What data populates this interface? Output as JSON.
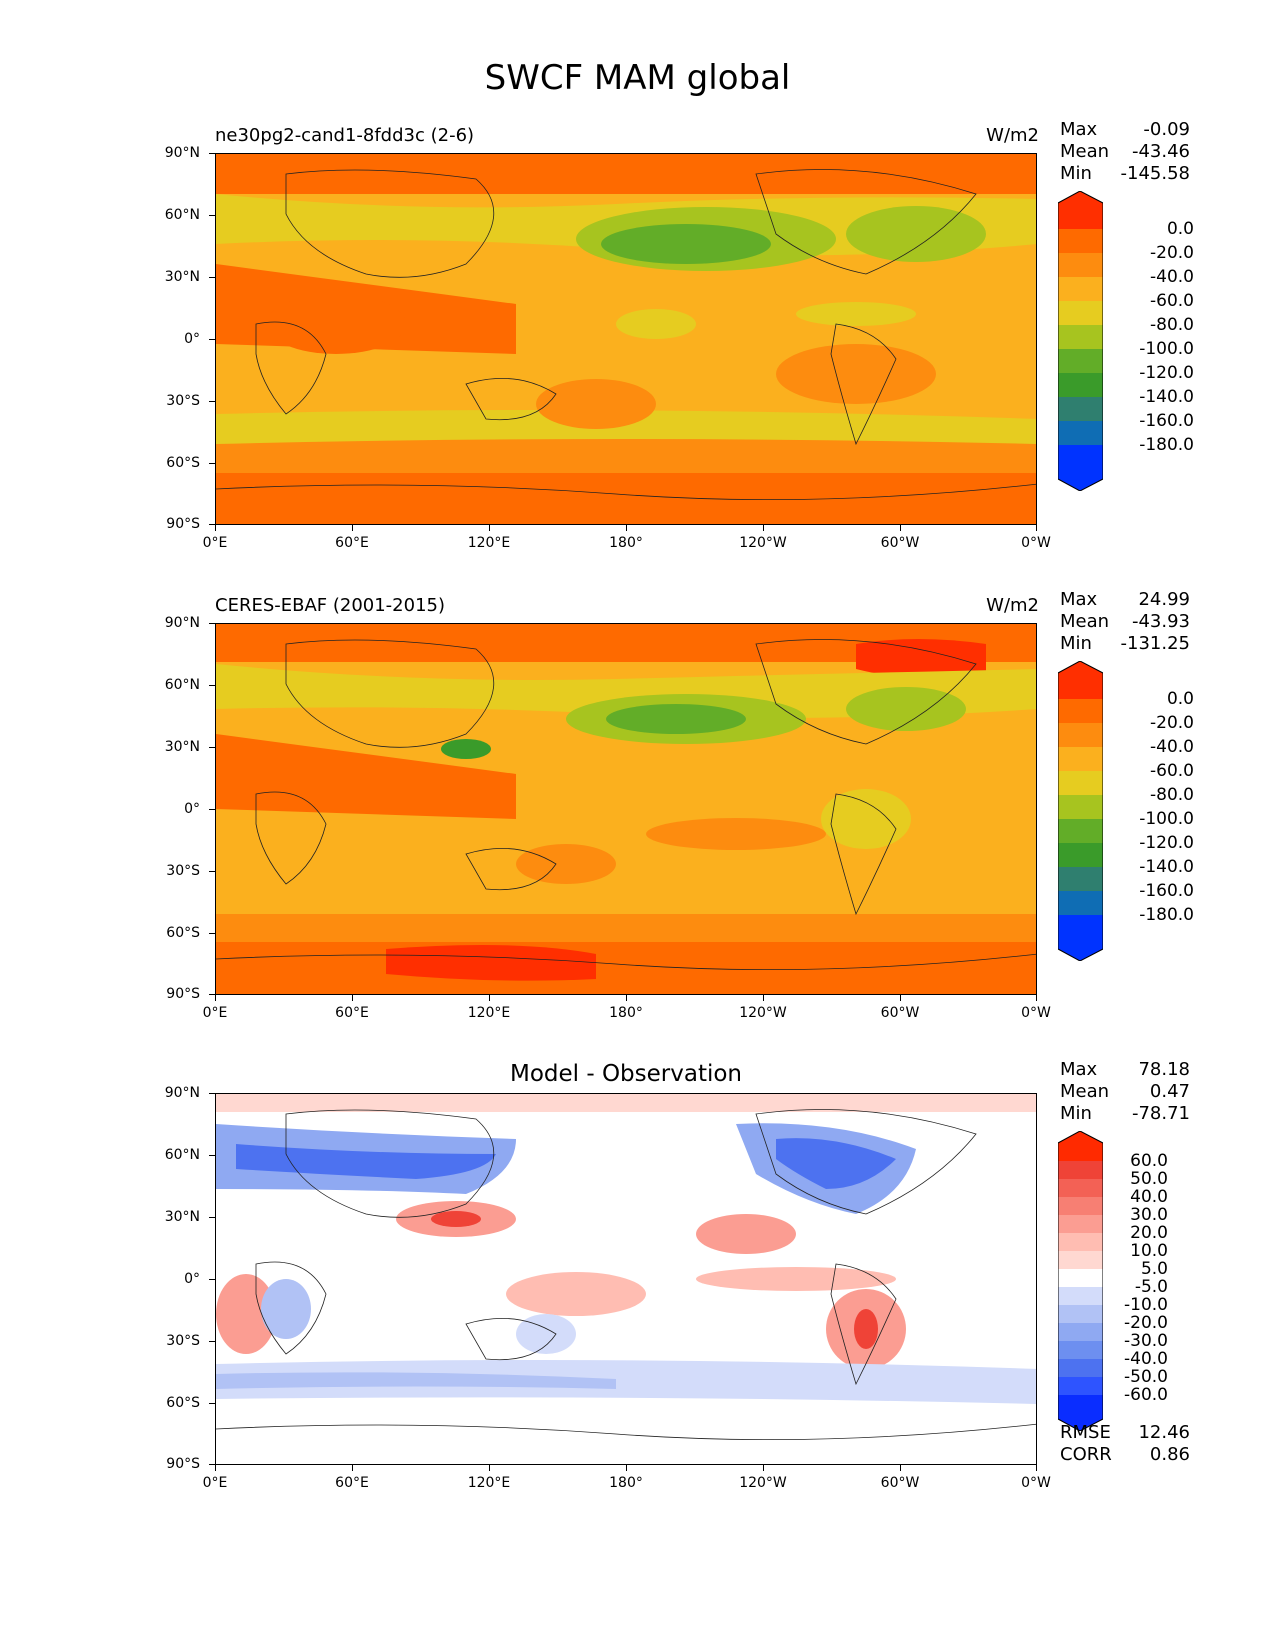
{
  "figure_title": "SWCF MAM global",
  "axes": {
    "lat_labels": [
      "90°N",
      "60°N",
      "30°N",
      "0°",
      "30°S",
      "60°S",
      "90°S"
    ],
    "lon_labels": [
      "0°E",
      "60°E",
      "120°E",
      "180°",
      "120°W",
      "60°W",
      "0°W"
    ]
  },
  "colors": {
    "abs_levels": [
      "#0033ff",
      "#0f6db4",
      "#2f7f6f",
      "#3a9b2a",
      "#62ad28",
      "#a7c41f",
      "#e6cc20",
      "#fbb01e",
      "#fd8c0f",
      "#fe6a00",
      "#ff2f00"
    ],
    "diff_levels": [
      "#0a2dff",
      "#2e54ff",
      "#4d72f0",
      "#6d8ff0",
      "#8fa9f2",
      "#b1c2f5",
      "#d3dcfa",
      "#ffffff",
      "#ffffff",
      "#ffd8d1",
      "#ffbdb2",
      "#fb9d92",
      "#f77f73",
      "#f36155",
      "#ef4337",
      "#ff2a00"
    ]
  },
  "panels": [
    {
      "id": "test",
      "title": "ne30pg2-cand1-8fdd3c (2-6)",
      "units": "W/m2",
      "stats": {
        "max_label": "Max",
        "max": "-0.09",
        "mean_label": "Mean",
        "mean": "-43.46",
        "min_label": "Min",
        "min": "-145.58"
      },
      "colorbar_labels": [
        "0.0",
        "-20.0",
        "-40.0",
        "-60.0",
        "-80.0",
        "-100.0",
        "-120.0",
        "-140.0",
        "-160.0",
        "-180.0"
      ]
    },
    {
      "id": "reference",
      "title": "CERES-EBAF (2001-2015)",
      "units": "W/m2",
      "stats": {
        "max_label": "Max",
        "max": "24.99",
        "mean_label": "Mean",
        "mean": "-43.93",
        "min_label": "Min",
        "min": "-131.25"
      },
      "colorbar_labels": [
        "0.0",
        "-20.0",
        "-40.0",
        "-60.0",
        "-80.0",
        "-100.0",
        "-120.0",
        "-140.0",
        "-160.0",
        "-180.0"
      ]
    },
    {
      "id": "difference",
      "title": "Model - Observation",
      "stats": {
        "max_label": "Max",
        "max": "78.18",
        "mean_label": "Mean",
        "mean": "0.47",
        "min_label": "Min",
        "min": "-78.71"
      },
      "colorbar_labels": [
        "60.0",
        "50.0",
        "40.0",
        "30.0",
        "20.0",
        "10.0",
        "5.0",
        "-5.0",
        "-10.0",
        "-20.0",
        "-30.0",
        "-40.0",
        "-50.0",
        "-60.0"
      ],
      "metrics": {
        "rmse_label": "RMSE",
        "rmse": "12.46",
        "corr_label": "CORR",
        "corr": "0.86"
      }
    }
  ]
}
